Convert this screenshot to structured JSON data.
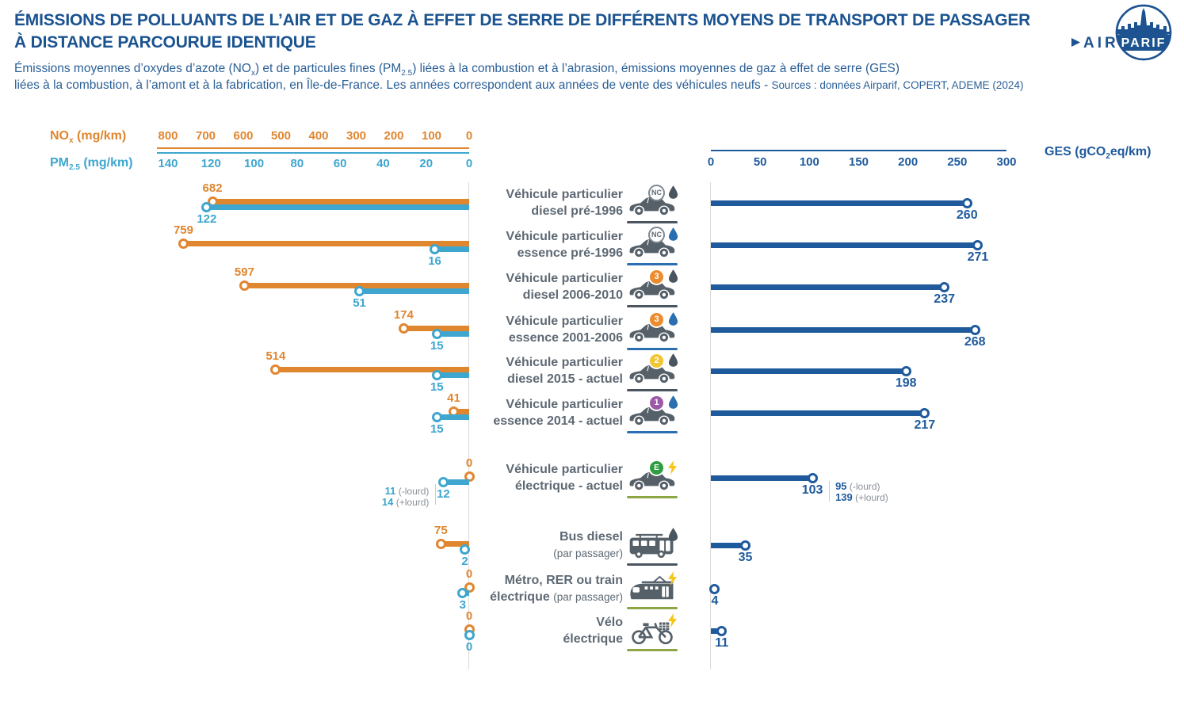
{
  "palette": {
    "orange": "#E0862F",
    "cyan": "#3EA6CF",
    "blue_dark": "#1E5A9C",
    "title_blue": "#1A5390",
    "subtitle_blue": "#2A5F96",
    "text_gray": "#5E6974",
    "icon_gray": "#566069",
    "underline_dark": "#4A5560",
    "underline_blue": "#2C6FB0",
    "underline_green": "#8CA545",
    "badge_orange": "#ED8B2F",
    "badge_yellow": "#F2C533",
    "badge_purple": "#9B59A8",
    "badge_green": "#2E9E41",
    "bolt_yellow": "#F5C518",
    "droplet_dark": "#4A5560",
    "droplet_blue": "#2C6FB0",
    "note_gray": "#8A9097"
  },
  "header": {
    "title_line1": "ÉMISSIONS DE POLLUANTS DE L’AIR ET DE GAZ À EFFET DE SERRE DE DIFFÉRENTS MOYENS DE TRANSPORT DE PASSAGER",
    "title_line2": "À DISTANCE PARCOURUE IDENTIQUE",
    "subtitle": {
      "s1a": "Émissions moyennes d’oxydes d’azote (NO",
      "s1a_sub": "x",
      "s1b": ") et de particules fines (PM",
      "s1b_sub": "2.5",
      "s1c": ") liées à la combustion et à l’abrasion, émissions moyennes de gaz à effet de serre (GES)",
      "s2": "liées à la combustion, à l’amont et à la fabrication, en Île-de-France. Les années correspondent  aux années de vente des véhicules neufs - ",
      "s2_sources": "Sources : données Airparif, COPERT, ADEME (2024)"
    }
  },
  "logo": {
    "air": "AIR",
    "parif": "PARIF"
  },
  "chart_data": {
    "type": "lollipop",
    "left_axis": {
      "nox_label_main": "NO",
      "nox_label_sub": "x",
      "nox_label_unit": " (mg/km)",
      "nox_ticks": [
        800,
        700,
        600,
        500,
        400,
        300,
        200,
        100,
        0
      ],
      "nox_max": 800,
      "pm_label_main": "PM",
      "pm_label_sub": "2.5",
      "pm_label_unit": " (mg/km)",
      "pm_ticks": [
        140,
        120,
        100,
        80,
        60,
        40,
        20,
        0
      ],
      "pm_max": 140
    },
    "right_axis": {
      "label_main": "GES (gCO",
      "label_sub": "2",
      "label_unit": "eq/km)",
      "ticks": [
        0,
        50,
        100,
        150,
        200,
        250,
        300
      ],
      "max": 300
    },
    "rows": [
      {
        "label1": "Véhicule particulier",
        "label2": "diesel pré-1996",
        "nox": 682,
        "pm": 122,
        "ges": 260,
        "icon": {
          "vehicle": "car",
          "badge": "NC",
          "badge_style": "nc",
          "energy": "droplet-dark",
          "underline": "dark"
        }
      },
      {
        "label1": "Véhicule particulier",
        "label2": "essence pré-1996",
        "nox": 759,
        "pm": 16,
        "ges": 271,
        "icon": {
          "vehicle": "car",
          "badge": "NC",
          "badge_style": "nc",
          "energy": "droplet-blue",
          "underline": "blue"
        }
      },
      {
        "label1": "Véhicule particulier",
        "label2": "diesel 2006-2010",
        "nox": 597,
        "pm": 51,
        "ges": 237,
        "icon": {
          "vehicle": "car",
          "badge": "3",
          "badge_style": "orange",
          "energy": "droplet-dark",
          "underline": "dark"
        }
      },
      {
        "label1": "Véhicule particulier",
        "label2": "essence 2001-2006",
        "nox": 174,
        "pm": 15,
        "ges": 268,
        "icon": {
          "vehicle": "car",
          "badge": "3",
          "badge_style": "orange",
          "energy": "droplet-blue",
          "underline": "blue"
        }
      },
      {
        "label1": "Véhicule particulier",
        "label2": "diesel 2015 - actuel",
        "nox": 514,
        "pm": 15,
        "ges": 198,
        "icon": {
          "vehicle": "car",
          "badge": "2",
          "badge_style": "yellow",
          "energy": "droplet-dark",
          "underline": "dark"
        }
      },
      {
        "label1": "Véhicule particulier",
        "label2": "essence 2014 - actuel",
        "nox": 41,
        "pm": 15,
        "ges": 217,
        "icon": {
          "vehicle": "car",
          "badge": "1",
          "badge_style": "purple",
          "energy": "droplet-blue",
          "underline": "blue"
        }
      },
      {
        "label1": "Véhicule particulier",
        "label2": "électrique - actuel",
        "nox": 0,
        "pm": 12,
        "ges": 103,
        "icon": {
          "vehicle": "car",
          "badge": "E",
          "badge_style": "green",
          "energy": "bolt",
          "underline": "green"
        },
        "pm_note": {
          "v1": "11",
          "t1": "(-lourd)",
          "v2": "14",
          "t2": "(+lourd)"
        },
        "ges_note": {
          "v1": "95",
          "t1": "(-lourd)",
          "v2": "139",
          "t2": "(+lourd)"
        }
      },
      {
        "label1": "Bus diesel",
        "label2": "",
        "label2_small": "(par passager)",
        "nox": 75,
        "pm": 2,
        "ges": 35,
        "icon": {
          "vehicle": "bus",
          "energy": "droplet-dark",
          "underline": "dark"
        }
      },
      {
        "label1": "Métro, RER ou train",
        "label2": "électrique",
        "label2_small": "(par passager)",
        "nox": 0,
        "pm": 3,
        "ges": 4,
        "icon": {
          "vehicle": "train",
          "energy": "bolt",
          "underline": "green"
        }
      },
      {
        "label1": "Vélo",
        "label2": "électrique",
        "nox": 0,
        "pm": 0,
        "ges": 11,
        "icon": {
          "vehicle": "bike",
          "energy": "bolt",
          "underline": "green"
        }
      }
    ]
  }
}
